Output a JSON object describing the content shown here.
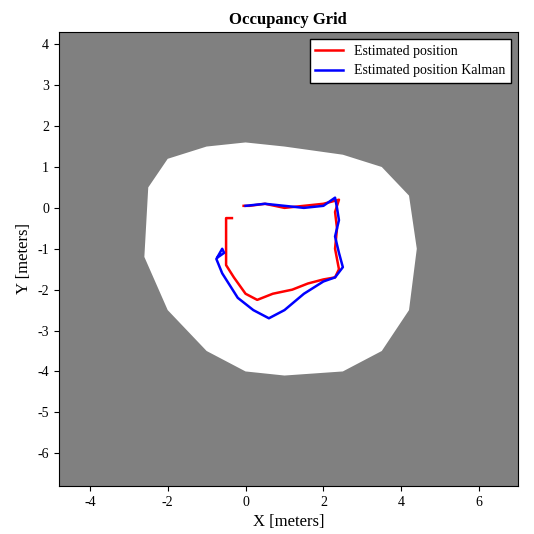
{
  "chart_data": {
    "type": "line",
    "title": "Occupancy Grid",
    "x_label": "X [meters]",
    "y_label": "Y [meters]",
    "xlim": [
      -4.8,
      7.0
    ],
    "ylim": [
      -6.8,
      4.3
    ],
    "xticks": [
      -4,
      -2,
      0,
      2,
      4,
      6
    ],
    "yticks": [
      -6,
      -5,
      -4,
      -3,
      -2,
      -1,
      0,
      1,
      2,
      3,
      4
    ],
    "grid": false,
    "legend": "upper right",
    "free_space": {
      "color": "#ffffff",
      "x": [
        -2.6,
        -2.5,
        -2.0,
        -1.0,
        0.0,
        1.0,
        2.5,
        3.5,
        4.2,
        4.4,
        4.2,
        3.5,
        2.5,
        1.0,
        0.0,
        -1.0,
        -2.0
      ],
      "y": [
        -1.2,
        0.5,
        1.2,
        1.5,
        1.6,
        1.5,
        1.3,
        1.0,
        0.3,
        -1.0,
        -2.5,
        -3.5,
        -4.0,
        -4.1,
        -4.0,
        -3.5,
        -2.5
      ]
    },
    "series": [
      {
        "name": "Estimated position",
        "color": "#ff0000",
        "line_style": "solid",
        "x": [
          -0.35,
          -0.5,
          -0.5,
          -0.3,
          0.0,
          0.3,
          0.7,
          1.2,
          1.6,
          2.0,
          2.3,
          2.4,
          2.3,
          2.35,
          2.3,
          2.4,
          2.0,
          1.5,
          1.0,
          0.5,
          0.1,
          -0.05
        ],
        "y": [
          -0.25,
          -0.25,
          -1.4,
          -1.7,
          -2.1,
          -2.25,
          -2.1,
          -2.0,
          -1.85,
          -1.75,
          -1.7,
          -1.5,
          -1.0,
          -0.5,
          -0.1,
          0.2,
          0.1,
          0.05,
          0.0,
          0.1,
          0.05,
          0.05
        ]
      },
      {
        "name": "Estimated position Kalman",
        "color": "#0000ff",
        "line_style": "solid",
        "x": [
          0.0,
          0.5,
          1.0,
          1.5,
          2.0,
          2.3,
          2.35,
          2.4,
          2.3,
          2.4,
          2.5,
          2.3,
          2.0,
          1.5,
          1.0,
          0.6,
          0.2,
          -0.2,
          -0.6,
          -0.75,
          -0.6,
          -0.55,
          -0.7
        ],
        "y": [
          0.05,
          0.1,
          0.05,
          0.0,
          0.05,
          0.25,
          0.0,
          -0.3,
          -0.7,
          -1.1,
          -1.45,
          -1.7,
          -1.8,
          -2.1,
          -2.5,
          -2.7,
          -2.5,
          -2.2,
          -1.6,
          -1.25,
          -1.0,
          -1.1,
          -1.2
        ]
      }
    ]
  }
}
